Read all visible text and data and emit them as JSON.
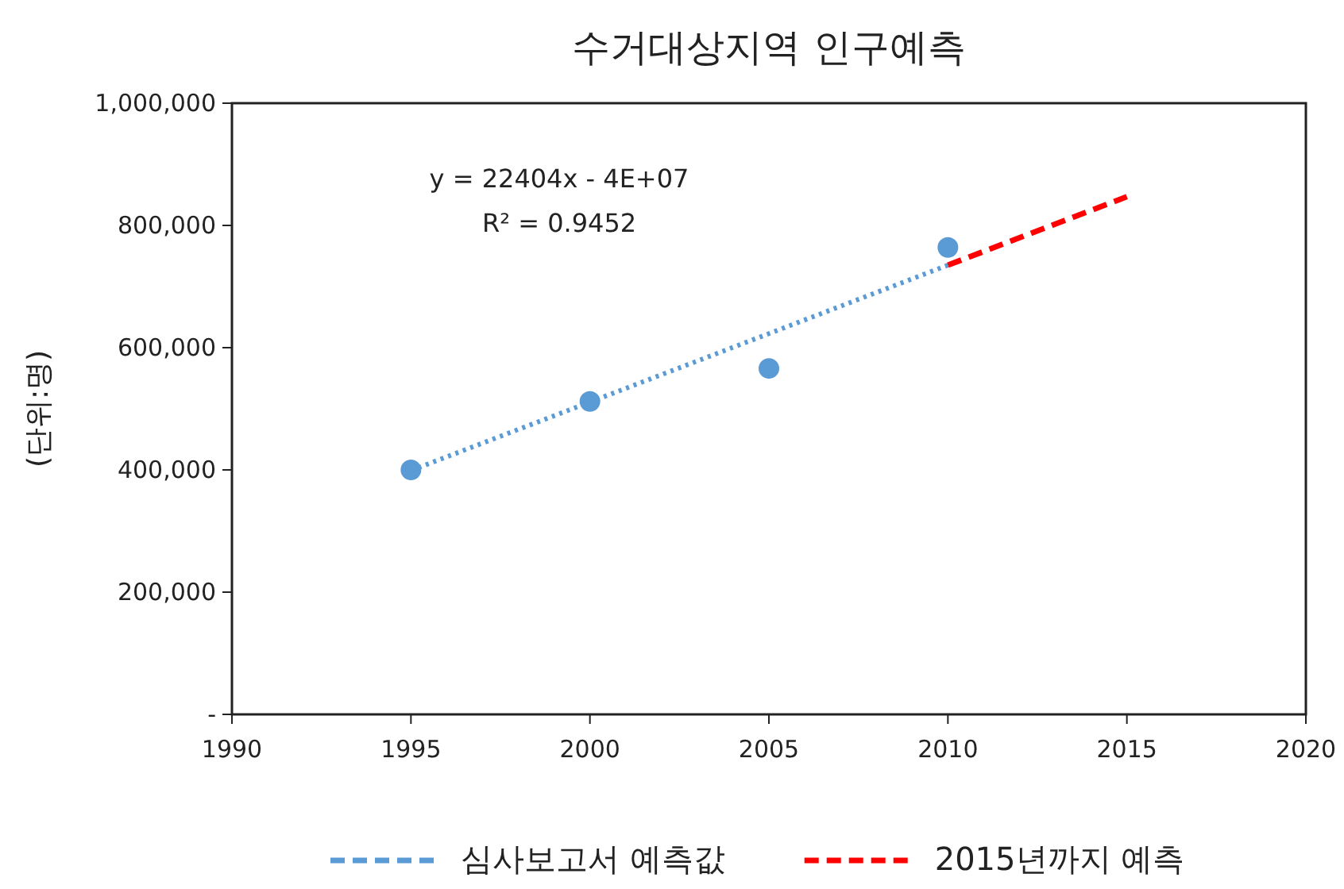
{
  "chart_data": {
    "type": "scatter",
    "title": "수거대상지역 인구예측",
    "ylabel": "(단위:명)",
    "xlim": [
      1990,
      2020
    ],
    "xticks": [
      1990,
      1995,
      2000,
      2005,
      2010,
      2015,
      2020
    ],
    "ylim": [
      0,
      1000000
    ],
    "yticks": [
      {
        "value": 0,
        "label": "-"
      },
      {
        "value": 200000,
        "label": "200,000"
      },
      {
        "value": 400000,
        "label": "400,000"
      },
      {
        "value": 600000,
        "label": "600,000"
      },
      {
        "value": 800000,
        "label": "800,000"
      },
      {
        "value": 1000000,
        "label": "1,000,000"
      }
    ],
    "series": [
      {
        "color": "#5b9bd5",
        "marker": "circle",
        "x": [
          1995,
          2000,
          2005,
          2010
        ],
        "values": [
          400000,
          512000,
          566000,
          764000
        ]
      },
      {
        "type": "line",
        "name": "심사보고서 예측값",
        "color": "#5b9bd5",
        "line_style": "dotted",
        "marker": "none",
        "x": [
          1995,
          2010
        ],
        "values": [
          399000,
          735000
        ]
      },
      {
        "type": "line",
        "name": "2015년까지 예측",
        "color": "#ff0000",
        "line_style": "dashed",
        "marker": "none",
        "x": [
          2010,
          2015
        ],
        "values": [
          735000,
          847000
        ]
      }
    ],
    "annotations": [
      "y = 22404x - 4E+07",
      "R² = 0.9452"
    ],
    "grid": false,
    "legend": "bottom"
  }
}
